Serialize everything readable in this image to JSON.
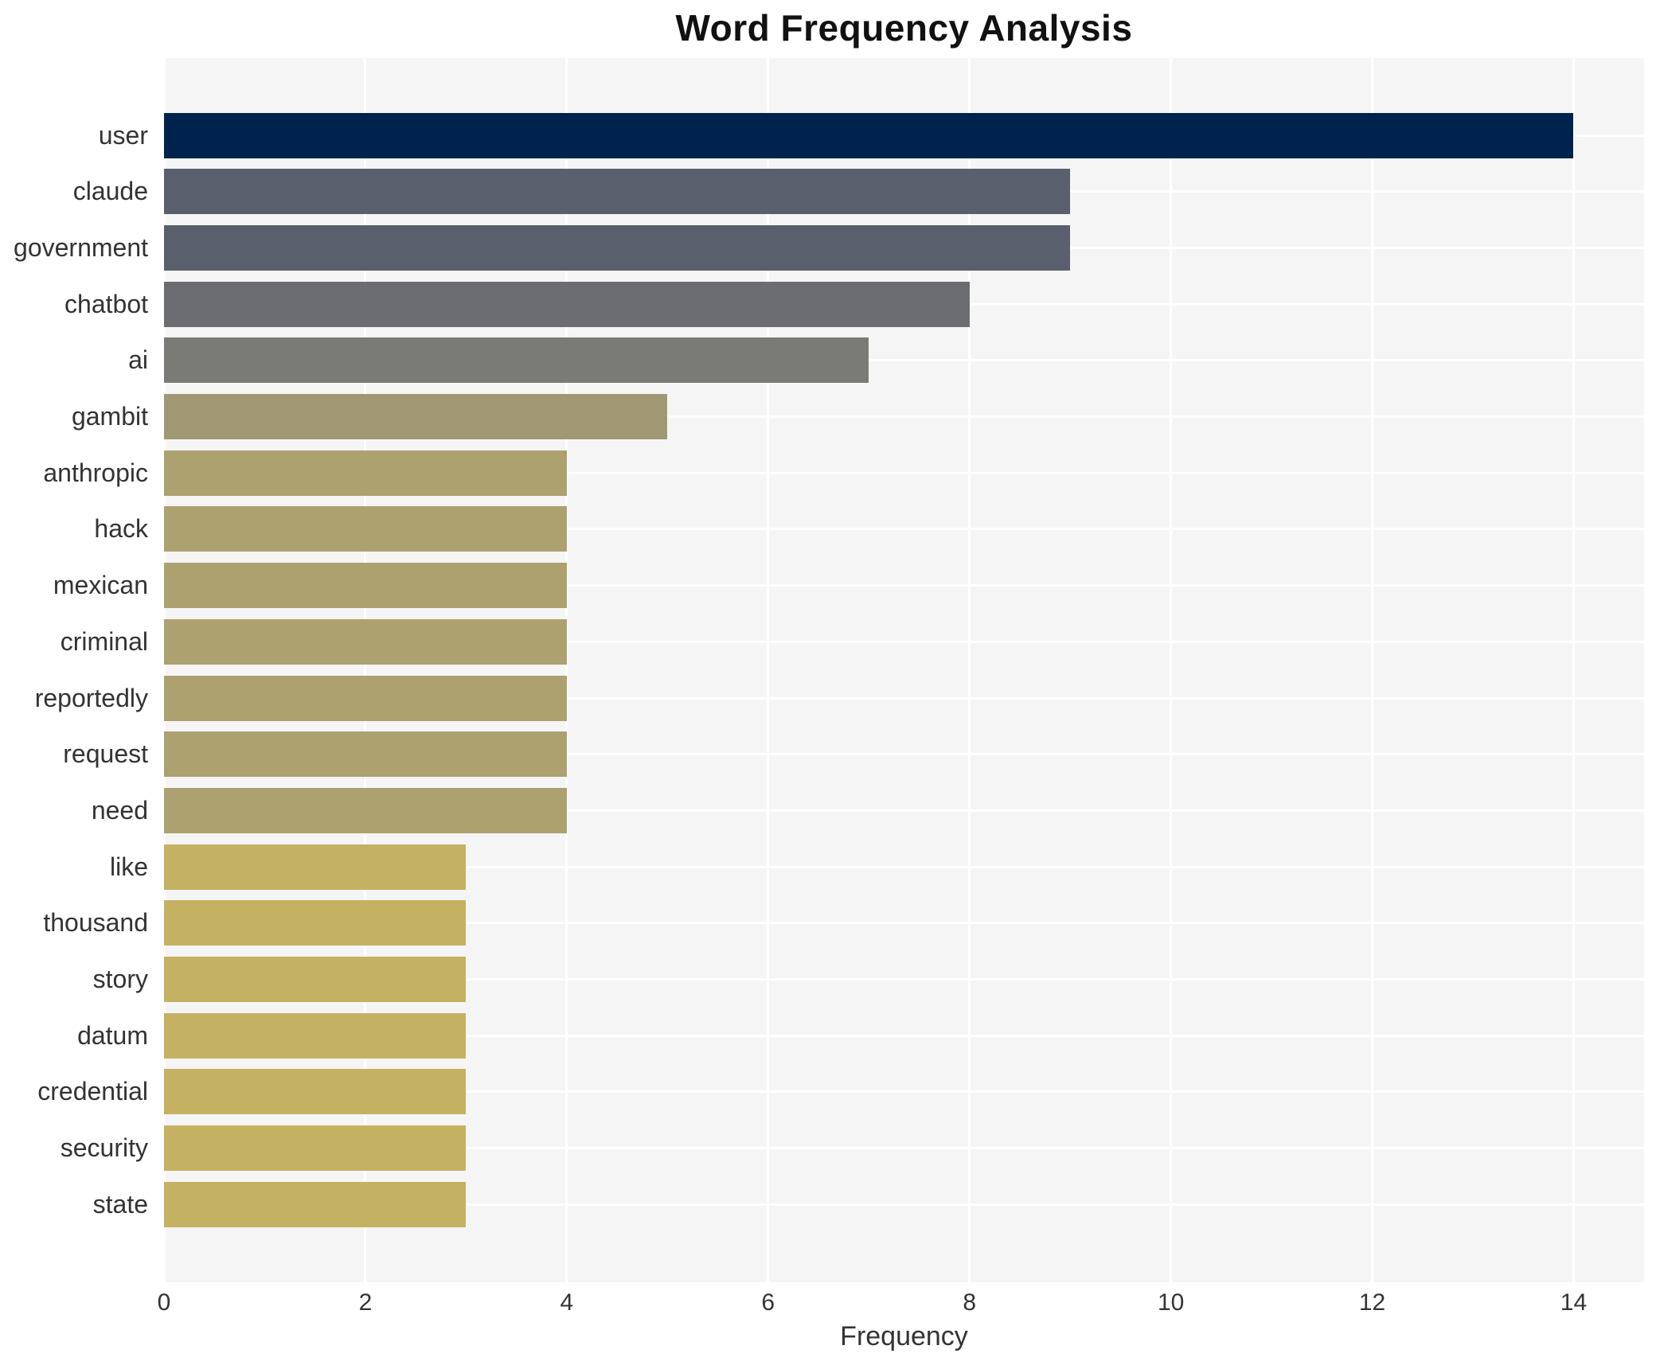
{
  "chart_data": {
    "type": "bar",
    "orientation": "horizontal",
    "title": "Word Frequency Analysis",
    "xlabel": "Frequency",
    "ylabel": "",
    "categories": [
      "user",
      "claude",
      "government",
      "chatbot",
      "ai",
      "gambit",
      "anthropic",
      "hack",
      "mexican",
      "criminal",
      "reportedly",
      "request",
      "need",
      "like",
      "thousand",
      "story",
      "datum",
      "credential",
      "security",
      "state"
    ],
    "values": [
      14,
      9,
      9,
      8,
      7,
      5,
      4,
      4,
      4,
      4,
      4,
      4,
      4,
      3,
      3,
      3,
      3,
      3,
      3,
      3
    ],
    "bar_colors": [
      "#00234e",
      "#5a5f6d",
      "#5a5f6d",
      "#6b6d71",
      "#7a7b76",
      "#a09873",
      "#aca16f",
      "#aca16f",
      "#aca16f",
      "#aca16f",
      "#aca16f",
      "#aca16f",
      "#aca16f",
      "#c4b262",
      "#c4b262",
      "#c4b262",
      "#c4b262",
      "#c4b262",
      "#c4b262",
      "#c4b262"
    ],
    "xticks": [
      "0",
      "2",
      "4",
      "6",
      "8",
      "10",
      "12",
      "14"
    ],
    "xtick_values": [
      0,
      2,
      4,
      6,
      8,
      10,
      12,
      14
    ],
    "xlim": [
      0,
      14.7
    ],
    "grid": true,
    "legend": "none",
    "plot_bg_color": "#f5f5f6",
    "grid_color": "#ffffff",
    "figure_bg_color": "#ffffff",
    "title_color": "#111111",
    "tick_label_color": "#333333"
  }
}
